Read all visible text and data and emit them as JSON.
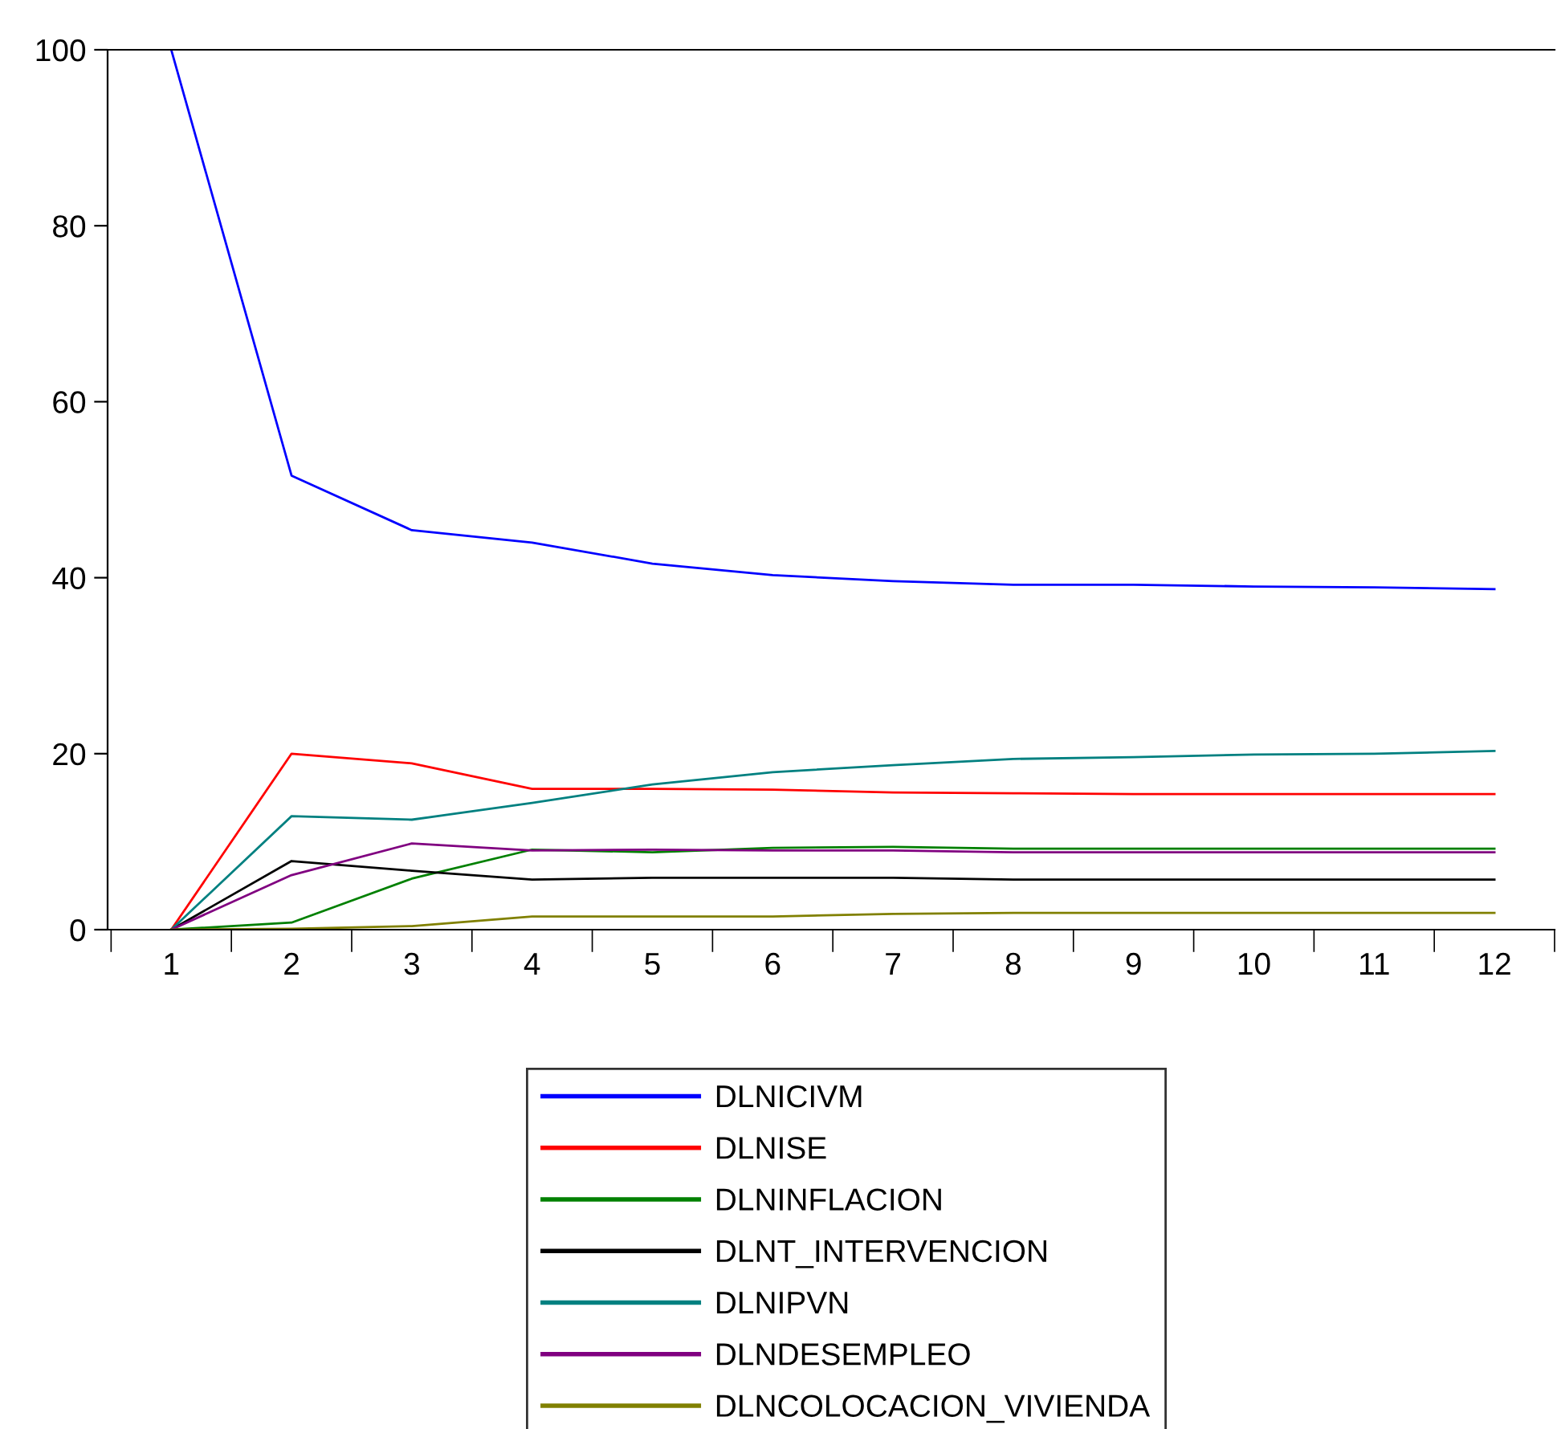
{
  "chart_data": {
    "type": "line",
    "categories": [
      "1",
      "2",
      "3",
      "4",
      "5",
      "6",
      "7",
      "8",
      "9",
      "10",
      "11",
      "12"
    ],
    "series": [
      {
        "name": "DLNICIVM",
        "color": "#0000ff",
        "values": [
          100,
          51.6,
          45.4,
          44.0,
          41.6,
          40.3,
          39.6,
          39.2,
          39.2,
          39.0,
          38.9,
          38.7
        ]
      },
      {
        "name": "DLNISE",
        "color": "#ff0000",
        "values": [
          0,
          20.0,
          18.9,
          16.0,
          16.0,
          15.9,
          15.6,
          15.5,
          15.4,
          15.4,
          15.4,
          15.4
        ]
      },
      {
        "name": "DLNINFLACION",
        "color": "#008000",
        "values": [
          0,
          0.8,
          5.8,
          9.1,
          8.8,
          9.3,
          9.4,
          9.2,
          9.2,
          9.2,
          9.2,
          9.2
        ]
      },
      {
        "name": "DLNT_INTERVENCION",
        "color": "#000000",
        "values": [
          0,
          7.8,
          6.7,
          5.7,
          5.9,
          5.9,
          5.9,
          5.7,
          5.7,
          5.7,
          5.7,
          5.7
        ]
      },
      {
        "name": "DLNIPVN",
        "color": "#008080",
        "values": [
          0,
          12.9,
          12.5,
          14.4,
          16.5,
          17.9,
          18.7,
          19.4,
          19.6,
          19.9,
          20.0,
          20.3
        ]
      },
      {
        "name": "DLNDESEMPLEO",
        "color": "#800080",
        "values": [
          0,
          6.2,
          9.8,
          9.0,
          9.1,
          9.0,
          9.0,
          8.8,
          8.8,
          8.8,
          8.8,
          8.8
        ]
      },
      {
        "name": "DLNCOLOCACION_VIVIENDA",
        "color": "#808000",
        "values": [
          0,
          0.1,
          0.4,
          1.5,
          1.5,
          1.5,
          1.8,
          1.9,
          1.9,
          1.9,
          1.9,
          1.9
        ]
      }
    ],
    "ylim": [
      0,
      100
    ],
    "yticks": [
      0,
      20,
      40,
      60,
      80,
      100
    ],
    "legend": "bottom",
    "grid": false,
    "marker": "none",
    "line_style": "solid"
  }
}
